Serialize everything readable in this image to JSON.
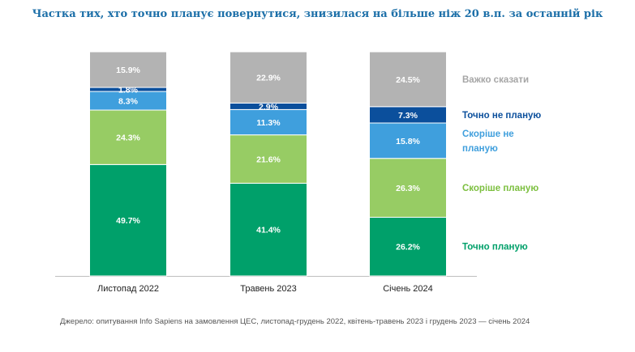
{
  "chart_data": {
    "type": "bar",
    "stacked": true,
    "title": "Частка тих, хто точно планує повернутися, знизилася на більше ніж 20 в.п. за останній рік",
    "categories": [
      "Листопад 2022",
      "Травень 2023",
      "Січень 2024"
    ],
    "series": [
      {
        "name": "Точно планую",
        "color": "#00a06a",
        "label_color": "#00a06a",
        "values": [
          49.7,
          41.4,
          26.2
        ],
        "labels": [
          "49.7%",
          "41.4%",
          "26.2%"
        ]
      },
      {
        "name": "Скоріше планую",
        "color": "#97cc64",
        "label_color": "#7cbf3f",
        "values": [
          24.3,
          21.6,
          26.3
        ],
        "labels": [
          "24.3%",
          "21.6%",
          "26.3%"
        ]
      },
      {
        "name": "Скоріше не планую",
        "color": "#3f9fdd",
        "label_color": "#3f9fdd",
        "values": [
          8.3,
          11.3,
          15.8
        ],
        "labels": [
          "8.3%",
          "11.3%",
          "15.8%"
        ]
      },
      {
        "name": "Точно не планую",
        "color": "#0b4f9c",
        "label_color": "#0b4f9c",
        "values": [
          1.8,
          2.9,
          7.3
        ],
        "labels": [
          "1.8%",
          "2.9%",
          "7.3%"
        ]
      },
      {
        "name": "Важко сказати",
        "color": "#b3b3b3",
        "label_color": "#a6a6a6",
        "values": [
          15.9,
          22.9,
          24.5
        ],
        "labels": [
          "15.9%",
          "22.9%",
          "24.5%"
        ]
      }
    ],
    "legend_lines": [
      [
        "Точно планую"
      ],
      [
        "Скоріше планую"
      ],
      [
        "Скоріше не",
        "планую"
      ],
      [
        "Точно не планую"
      ],
      [
        "Важко сказати"
      ]
    ],
    "ylim": [
      0,
      100
    ],
    "legend_position": "right"
  },
  "source": "Джерело: опитування Info Sapiens на замовлення ЦЕС, листопад-грудень 2022, квітень-травень 2023 і грудень 2023 — січень 2024"
}
